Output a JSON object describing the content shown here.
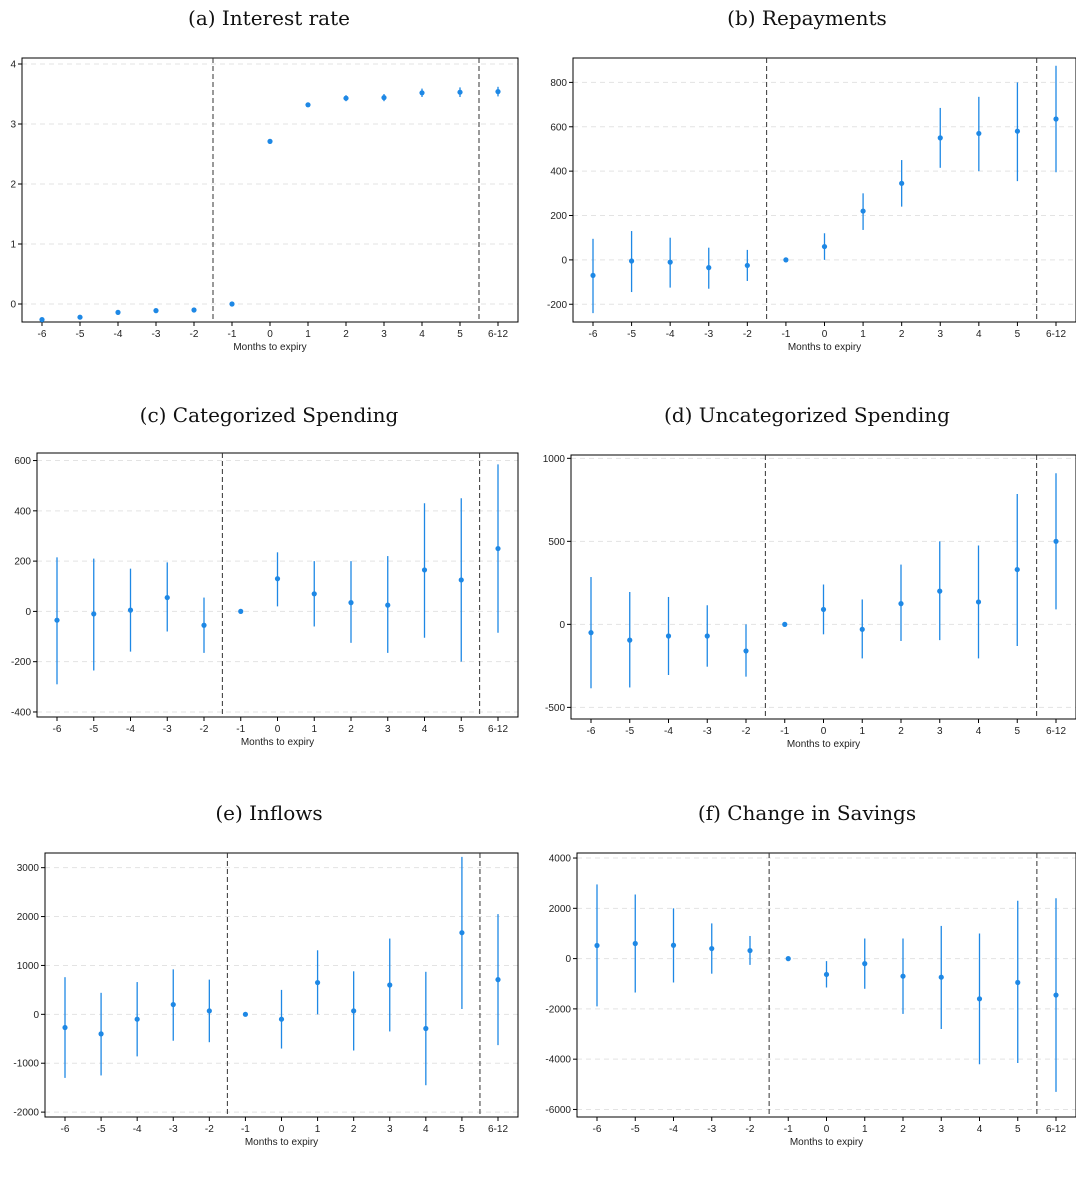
{
  "chart_data": [
    {
      "type": "scatter",
      "title": "(a) Interest rate",
      "xlabel": "Months to expiry",
      "ylabel": "",
      "categories": [
        "-6",
        "-5",
        "-4",
        "-3",
        "-2",
        "-1",
        "0",
        "1",
        "2",
        "3",
        "4",
        "5",
        "6-12"
      ],
      "ylim": [
        -0.3,
        4.1
      ],
      "yticks": [
        0,
        1,
        2,
        3,
        4
      ],
      "series": [
        {
          "estimates": [
            -0.26,
            -0.22,
            -0.14,
            -0.11,
            -0.1,
            0.0,
            2.71,
            3.32,
            3.43,
            3.44,
            3.52,
            3.53,
            3.54
          ],
          "ci_low": [
            -0.27,
            -0.23,
            -0.15,
            -0.12,
            -0.12,
            0.0,
            2.68,
            3.29,
            3.38,
            3.38,
            3.45,
            3.45,
            3.46
          ],
          "ci_high": [
            -0.25,
            -0.21,
            -0.13,
            -0.1,
            -0.08,
            0.0,
            2.74,
            3.35,
            3.48,
            3.5,
            3.59,
            3.61,
            3.62
          ]
        }
      ],
      "vlines_after": [
        "-2",
        "5"
      ],
      "color": "#1e88e5",
      "grid": "horizontal dashed"
    },
    {
      "type": "scatter",
      "title": "(b) Repayments",
      "xlabel": "Months to expiry",
      "ylabel": "",
      "categories": [
        "-6",
        "-5",
        "-4",
        "-3",
        "-2",
        "-1",
        "0",
        "1",
        "2",
        "3",
        "4",
        "5",
        "6-12"
      ],
      "ylim": [
        -280,
        910
      ],
      "yticks": [
        -200,
        0,
        200,
        400,
        600,
        800
      ],
      "series": [
        {
          "estimates": [
            -70,
            -5,
            -10,
            -35,
            -25,
            0,
            60,
            220,
            345,
            550,
            570,
            580,
            635
          ],
          "ci_low": [
            -240,
            -145,
            -125,
            -130,
            -95,
            0,
            0,
            135,
            240,
            415,
            400,
            355,
            395
          ],
          "ci_high": [
            95,
            130,
            100,
            55,
            45,
            0,
            120,
            300,
            450,
            685,
            735,
            800,
            875
          ]
        }
      ],
      "vlines_after": [
        "-2",
        "5"
      ],
      "color": "#1e88e5",
      "grid": "horizontal dashed"
    },
    {
      "type": "scatter",
      "title": "(c) Categorized Spending",
      "xlabel": "Months to expiry",
      "ylabel": "",
      "categories": [
        "-6",
        "-5",
        "-4",
        "-3",
        "-2",
        "-1",
        "0",
        "1",
        "2",
        "3",
        "4",
        "5",
        "6-12"
      ],
      "ylim": [
        -420,
        630
      ],
      "yticks": [
        -400,
        -200,
        0,
        200,
        400,
        600
      ],
      "series": [
        {
          "estimates": [
            -35,
            -10,
            5,
            55,
            -55,
            0,
            130,
            70,
            35,
            25,
            165,
            125,
            250
          ],
          "ci_low": [
            -290,
            -235,
            -160,
            -80,
            -165,
            0,
            20,
            -60,
            -125,
            -165,
            -105,
            -200,
            -85
          ],
          "ci_high": [
            215,
            210,
            170,
            195,
            55,
            0,
            235,
            200,
            200,
            220,
            430,
            450,
            585
          ]
        }
      ],
      "vlines_after": [
        "-2",
        "5"
      ],
      "color": "#1e88e5",
      "grid": "horizontal dashed"
    },
    {
      "type": "scatter",
      "title": "(d) Uncategorized Spending",
      "xlabel": "Months to expiry",
      "ylabel": "",
      "categories": [
        "-6",
        "-5",
        "-4",
        "-3",
        "-2",
        "-1",
        "0",
        "1",
        "2",
        "3",
        "4",
        "5",
        "6-12"
      ],
      "ylim": [
        -570,
        1020
      ],
      "yticks": [
        -500,
        0,
        500,
        1000
      ],
      "series": [
        {
          "estimates": [
            -50,
            -95,
            -70,
            -70,
            -160,
            0,
            90,
            -30,
            125,
            200,
            135,
            330,
            500
          ],
          "ci_low": [
            -385,
            -380,
            -305,
            -255,
            -315,
            0,
            -60,
            -205,
            -100,
            -95,
            -205,
            -130,
            90
          ],
          "ci_high": [
            285,
            195,
            165,
            115,
            0,
            0,
            240,
            150,
            360,
            500,
            475,
            785,
            910
          ]
        }
      ],
      "vlines_after": [
        "-2",
        "5"
      ],
      "color": "#1e88e5",
      "grid": "horizontal dashed"
    },
    {
      "type": "scatter",
      "title": "(e) Inflows",
      "xlabel": "Months to expiry",
      "ylabel": "",
      "categories": [
        "-6",
        "-5",
        "-4",
        "-3",
        "-2",
        "-1",
        "0",
        "1",
        "2",
        "3",
        "4",
        "5",
        "6-12"
      ],
      "ylim": [
        -2100,
        3300
      ],
      "yticks": [
        -2000,
        -1000,
        0,
        1000,
        2000,
        3000
      ],
      "series": [
        {
          "estimates": [
            -270,
            -400,
            -100,
            200,
            70,
            0,
            -100,
            650,
            70,
            600,
            -290,
            1670,
            710
          ],
          "ci_low": [
            -1300,
            -1250,
            -860,
            -540,
            -570,
            0,
            -700,
            0,
            -740,
            -350,
            -1450,
            110,
            -630
          ],
          "ci_high": [
            760,
            440,
            660,
            920,
            710,
            0,
            500,
            1310,
            880,
            1550,
            870,
            3220,
            2050
          ]
        }
      ],
      "vlines_after": [
        "-2",
        "5"
      ],
      "color": "#1e88e5",
      "grid": "horizontal dashed"
    },
    {
      "type": "scatter",
      "title": "(f) Change in Savings",
      "xlabel": "Months to expiry",
      "ylabel": "",
      "categories": [
        "-6",
        "-5",
        "-4",
        "-3",
        "-2",
        "-1",
        "0",
        "1",
        "2",
        "3",
        "4",
        "5",
        "6-12"
      ],
      "ylim": [
        -6300,
        4200
      ],
      "yticks": [
        -6000,
        -4000,
        -2000,
        0,
        2000,
        4000
      ],
      "series": [
        {
          "estimates": [
            520,
            600,
            530,
            400,
            320,
            0,
            -630,
            -200,
            -700,
            -740,
            -1600,
            -950,
            -1450
          ],
          "ci_low": [
            -1900,
            -1350,
            -950,
            -600,
            -250,
            0,
            -1150,
            -1200,
            -2200,
            -2800,
            -4200,
            -4150,
            -5300
          ],
          "ci_high": [
            2950,
            2550,
            2000,
            1400,
            900,
            0,
            -100,
            800,
            800,
            1300,
            1000,
            2300,
            2400
          ]
        }
      ],
      "vlines_after": [
        "-2",
        "5"
      ],
      "color": "#1e88e5",
      "grid": "horizontal dashed"
    }
  ]
}
